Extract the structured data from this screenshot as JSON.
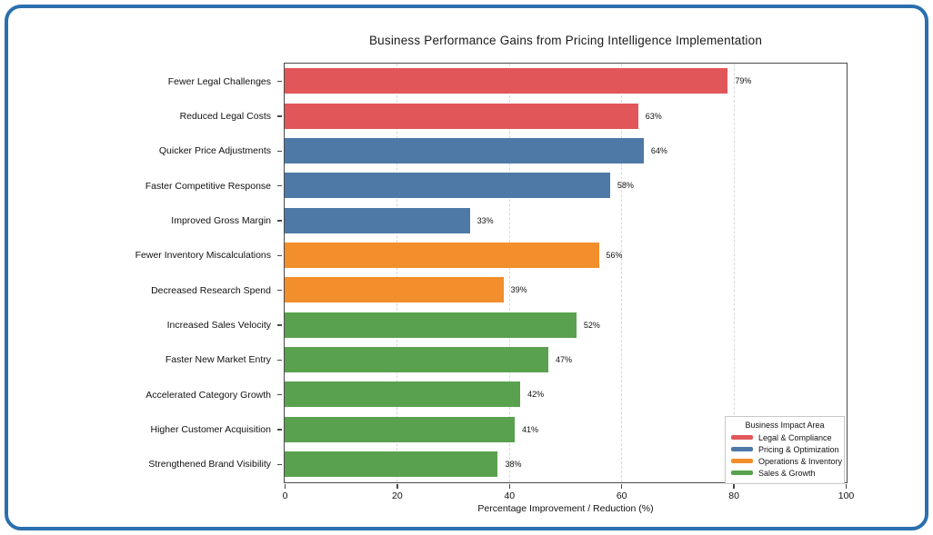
{
  "frame": {
    "border_color": "#2B6FAF",
    "background": "#ffffff"
  },
  "chart_data": {
    "type": "bar",
    "orientation": "horizontal",
    "title": "Business Performance Gains from Pricing Intelligence Implementation",
    "xlabel": "Percentage Improvement / Reduction (%)",
    "ylabel": "",
    "xlim": [
      0,
      100
    ],
    "x_ticks": [
      0,
      20,
      40,
      60,
      80,
      100
    ],
    "grid": "vertical-dashed",
    "categories": [
      "Fewer Legal Challenges",
      "Reduced Legal Costs",
      "Quicker Price Adjustments",
      "Faster Competitive Response",
      "Improved Gross Margin",
      "Fewer Inventory Miscalculations",
      "Decreased Research Spend",
      "Increased Sales Velocity",
      "Faster New Market Entry",
      "Accelerated Category Growth",
      "Higher Customer Acquisition",
      "Strengthened Brand Visibility"
    ],
    "values": [
      79,
      63,
      64,
      58,
      33,
      56,
      39,
      52,
      47,
      42,
      41,
      38
    ],
    "value_labels": [
      "79%",
      "63%",
      "64%",
      "58%",
      "33%",
      "56%",
      "39%",
      "52%",
      "47%",
      "42%",
      "41%",
      "38%"
    ],
    "groups": [
      "Legal & Compliance",
      "Legal & Compliance",
      "Pricing & Optimization",
      "Pricing & Optimization",
      "Pricing & Optimization",
      "Operations & Inventory",
      "Operations & Inventory",
      "Sales & Growth",
      "Sales & Growth",
      "Sales & Growth",
      "Sales & Growth",
      "Sales & Growth"
    ],
    "group_colors": {
      "Legal & Compliance": "#E15759",
      "Pricing & Optimization": "#4E79A7",
      "Operations & Inventory": "#F28E2B",
      "Sales & Growth": "#59A14F"
    },
    "legend": {
      "title": "Business Impact Area",
      "position": "lower right",
      "entries": [
        {
          "label": "Legal & Compliance",
          "color": "#E15759"
        },
        {
          "label": "Pricing & Optimization",
          "color": "#4E79A7"
        },
        {
          "label": "Operations & Inventory",
          "color": "#F28E2B"
        },
        {
          "label": "Sales & Growth",
          "color": "#59A14F"
        }
      ]
    }
  }
}
